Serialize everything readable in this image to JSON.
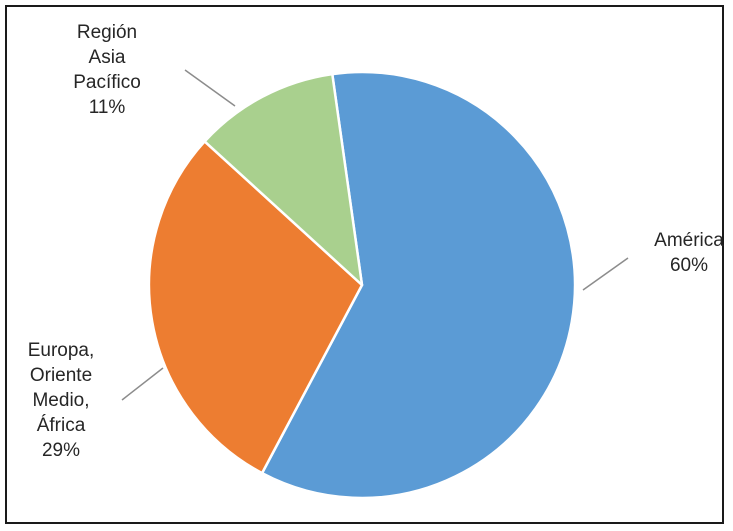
{
  "chart_data": {
    "type": "pie",
    "slices": [
      {
        "name_lines": [
          "América"
        ],
        "percent_label": "60%",
        "value": 60,
        "color": "#5b9bd5"
      },
      {
        "name_lines": [
          "Europa,",
          "Oriente",
          "Medio,",
          "África"
        ],
        "percent_label": "29%",
        "value": 29,
        "color": "#ed7d31"
      },
      {
        "name_lines": [
          "Región",
          "Asia",
          "Pacífico"
        ],
        "percent_label": "11%",
        "value": 11,
        "color": "#a9d08e"
      }
    ],
    "start": "clockwise from top",
    "legend": "none",
    "leader_line_color": "#8c8c8c"
  }
}
